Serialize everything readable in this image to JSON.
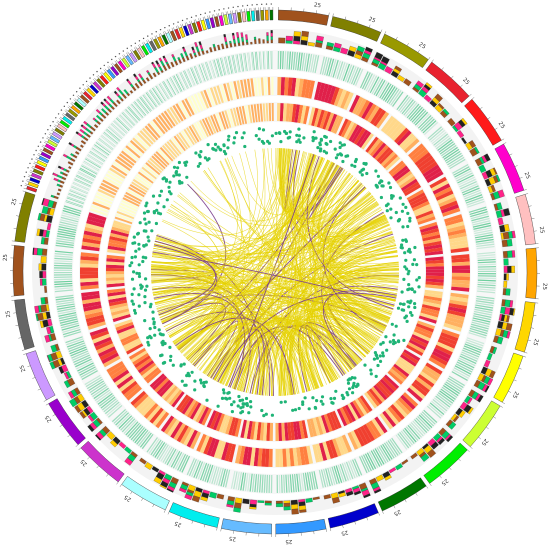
{
  "figure": {
    "tick_label": "25",
    "scaffold_palette": [
      "#a0521d",
      "#808000",
      "#999900",
      "#e8222f",
      "#ff1a1a",
      "#ff00cc",
      "#ffc0c0",
      "#ffa500",
      "#ffd700",
      "#ffff00",
      "#ccff33",
      "#00ee00",
      "#007700",
      "#0000cc",
      "#3399ff",
      "#66bbff",
      "#00eeee",
      "#aaffff",
      "#cc33cc",
      "#9900cc",
      "#cc99ff",
      "#666666",
      "#a0521d",
      "#808000"
    ],
    "heatmap_colors": [
      "#ffffcc",
      "#ffd88a",
      "#ffb060",
      "#ff8040",
      "#f04030",
      "#e0204a"
    ],
    "track_colors": {
      "gene_density": "#66cc99",
      "snp_dots": "#1fb477",
      "links_major": "#e6d200",
      "links_minor": "#7a3c8c",
      "inner_ring": "#ff5a30",
      "bar_stack": [
        "#a0521d",
        "#00cc66",
        "#ff2288",
        "#222222",
        "#ffcc00"
      ]
    }
  }
}
